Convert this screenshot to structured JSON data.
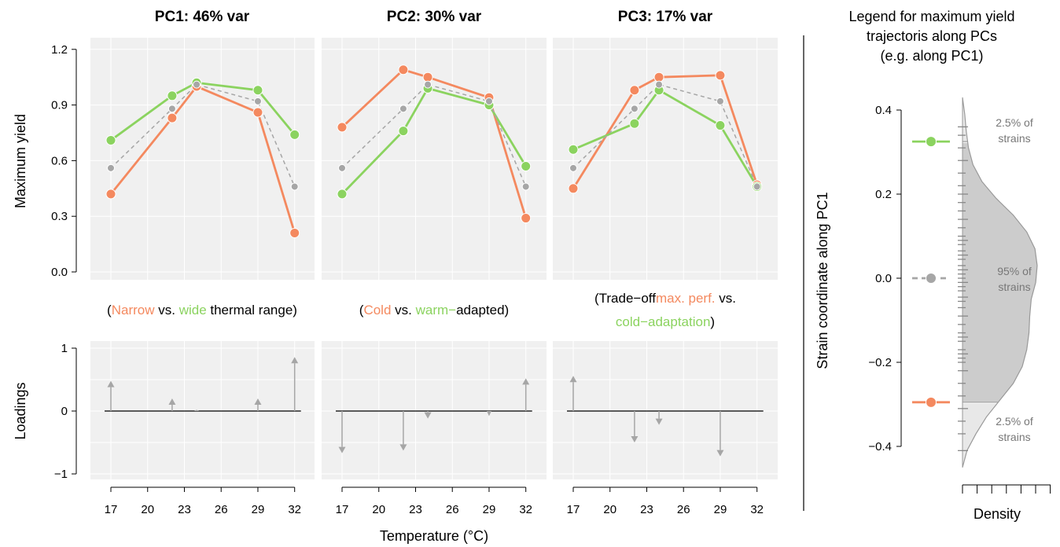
{
  "colors": {
    "orange": "#F4895F",
    "green": "#8BD35F",
    "gray": "#A6A6A6",
    "panel_bg": "#F0F0F0"
  },
  "chart_data": [
    {
      "type": "line",
      "panel": "PC1",
      "title": "PC1: 46% var",
      "xlabel": "Temperature (°C)",
      "ylabel": "Maximum yield",
      "x": [
        17,
        22,
        24,
        29,
        32
      ],
      "ylim": [
        0,
        1.2
      ],
      "yticks": [
        "0.0",
        "0.3",
        "0.6",
        "0.9",
        "1.2"
      ],
      "series": [
        {
          "color": "orange",
          "values": [
            0.42,
            0.83,
            1.0,
            0.86,
            0.21
          ]
        },
        {
          "color": "green",
          "values": [
            0.71,
            0.95,
            1.02,
            0.98,
            0.74
          ]
        },
        {
          "color": "gray",
          "dashed": true,
          "values": [
            0.56,
            0.88,
            1.01,
            0.92,
            0.46
          ]
        }
      ],
      "subtitle": [
        {
          "text": "(",
          "color": "black"
        },
        {
          "text": "Narrow",
          "color": "orange"
        },
        {
          "text": " vs. ",
          "color": "black"
        },
        {
          "text": "wide",
          "color": "green"
        },
        {
          "text": " thermal range)",
          "color": "black"
        }
      ]
    },
    {
      "type": "line",
      "panel": "PC2",
      "title": "PC2: 30% var",
      "x": [
        17,
        22,
        24,
        29,
        32
      ],
      "ylim": [
        0,
        1.2
      ],
      "series": [
        {
          "color": "orange",
          "values": [
            0.78,
            1.09,
            1.05,
            0.94,
            0.29
          ]
        },
        {
          "color": "green",
          "values": [
            0.42,
            0.76,
            0.99,
            0.9,
            0.57
          ]
        },
        {
          "color": "gray",
          "dashed": true,
          "values": [
            0.56,
            0.88,
            1.01,
            0.92,
            0.46
          ]
        }
      ],
      "subtitle": [
        {
          "text": "(",
          "color": "black"
        },
        {
          "text": "Cold",
          "color": "orange"
        },
        {
          "text": " vs. ",
          "color": "black"
        },
        {
          "text": "warm−",
          "color": "green"
        },
        {
          "text": "adapted)",
          "color": "black"
        }
      ]
    },
    {
      "type": "line",
      "panel": "PC3",
      "title": "PC3: 17% var",
      "x": [
        17,
        22,
        24,
        29,
        32
      ],
      "ylim": [
        0,
        1.2
      ],
      "series": [
        {
          "color": "orange",
          "values": [
            0.45,
            0.98,
            1.05,
            1.06,
            0.47
          ]
        },
        {
          "color": "green",
          "values": [
            0.66,
            0.8,
            0.98,
            0.79,
            0.46
          ]
        },
        {
          "color": "gray",
          "dashed": true,
          "values": [
            0.56,
            0.88,
            1.01,
            0.92,
            0.46
          ]
        }
      ],
      "subtitle": [
        {
          "text": "(Trade−off",
          "color": "black"
        },
        {
          "text": "max. perf.",
          "color": "orange"
        },
        {
          "text": " vs.",
          "color": "black"
        }
      ],
      "subtitle2": [
        {
          "text": "cold−adaptation",
          "color": "green"
        },
        {
          "text": ")",
          "color": "black"
        }
      ]
    },
    {
      "type": "bar",
      "panel": "PC1 loadings",
      "ylabel": "Loadings",
      "x": [
        17,
        22,
        24,
        29,
        32
      ],
      "values": [
        0.48,
        0.2,
        0.02,
        0.2,
        0.86
      ],
      "ylim": [
        -1,
        1
      ],
      "yticks": [
        "−1",
        "0",
        "1"
      ],
      "xticks": [
        "17",
        "20",
        "23",
        "26",
        "29",
        "32"
      ],
      "xlabel": "Temperature (°C)"
    },
    {
      "type": "bar",
      "panel": "PC2 loadings",
      "x": [
        17,
        22,
        24,
        29,
        32
      ],
      "values": [
        -0.67,
        -0.63,
        -0.12,
        -0.08,
        0.52
      ],
      "ylim": [
        -1,
        1
      ],
      "xticks": [
        "17",
        "20",
        "23",
        "26",
        "29",
        "32"
      ]
    },
    {
      "type": "bar",
      "panel": "PC3 loadings",
      "x": [
        17,
        22,
        24,
        29,
        32
      ],
      "values": [
        0.56,
        -0.5,
        -0.22,
        -0.72,
        0.0
      ],
      "ylim": [
        -1,
        1
      ],
      "xticks": [
        "17",
        "20",
        "23",
        "26",
        "29",
        "32"
      ]
    },
    {
      "type": "area",
      "panel": "legend-density",
      "title_lines": [
        "Legend for maximum yield",
        "trajectoris along PCs",
        "(e.g. along PC1)"
      ],
      "ylabel": "Strain coordinate along PC1",
      "xlabel": "Density",
      "ylim": [
        -0.45,
        0.45
      ],
      "yticks": [
        "−0.4",
        "−0.2",
        "0.0",
        "0.2",
        "0.4"
      ],
      "density_curve": [
        {
          "y": -0.45,
          "d": 0.0
        },
        {
          "y": -0.41,
          "d": 0.06
        },
        {
          "y": -0.37,
          "d": 0.18
        },
        {
          "y": -0.33,
          "d": 0.32
        },
        {
          "y": -0.29,
          "d": 0.5
        },
        {
          "y": -0.25,
          "d": 0.68
        },
        {
          "y": -0.21,
          "d": 0.8
        },
        {
          "y": -0.17,
          "d": 0.86
        },
        {
          "y": -0.13,
          "d": 0.89
        },
        {
          "y": -0.09,
          "d": 0.9
        },
        {
          "y": -0.05,
          "d": 0.92
        },
        {
          "y": -0.01,
          "d": 0.98
        },
        {
          "y": 0.03,
          "d": 1.0
        },
        {
          "y": 0.07,
          "d": 0.97
        },
        {
          "y": 0.11,
          "d": 0.86
        },
        {
          "y": 0.15,
          "d": 0.68
        },
        {
          "y": 0.19,
          "d": 0.45
        },
        {
          "y": 0.23,
          "d": 0.26
        },
        {
          "y": 0.27,
          "d": 0.14
        },
        {
          "y": 0.31,
          "d": 0.08
        },
        {
          "y": 0.35,
          "d": 0.05
        },
        {
          "y": 0.39,
          "d": 0.03
        },
        {
          "y": 0.43,
          "d": 0.0
        }
      ],
      "interval": {
        "lower": -0.295,
        "upper": 0.325
      },
      "markers": [
        {
          "color": "green",
          "y": 0.325
        },
        {
          "color": "gray",
          "y": 0.0
        },
        {
          "color": "orange",
          "y": -0.295
        }
      ],
      "annotations": {
        "upper": [
          "2.5% of",
          "strains"
        ],
        "middle": [
          "95% of",
          "strains"
        ],
        "lower": [
          "2.5% of",
          "strains"
        ]
      },
      "rug": [
        -0.41,
        -0.37,
        -0.34,
        -0.31,
        -0.28,
        -0.25,
        -0.22,
        -0.2,
        -0.19,
        -0.18,
        -0.17,
        -0.15,
        -0.14,
        -0.13,
        -0.11,
        -0.09,
        -0.07,
        -0.055,
        -0.045,
        -0.03,
        -0.02,
        -0.01,
        0.0,
        0.01,
        0.02,
        0.03,
        0.045,
        0.055,
        0.065,
        0.08,
        0.09,
        0.1,
        0.12,
        0.14,
        0.16,
        0.18,
        0.2,
        0.22,
        0.25,
        0.28,
        0.31,
        0.34,
        0.36
      ]
    }
  ]
}
